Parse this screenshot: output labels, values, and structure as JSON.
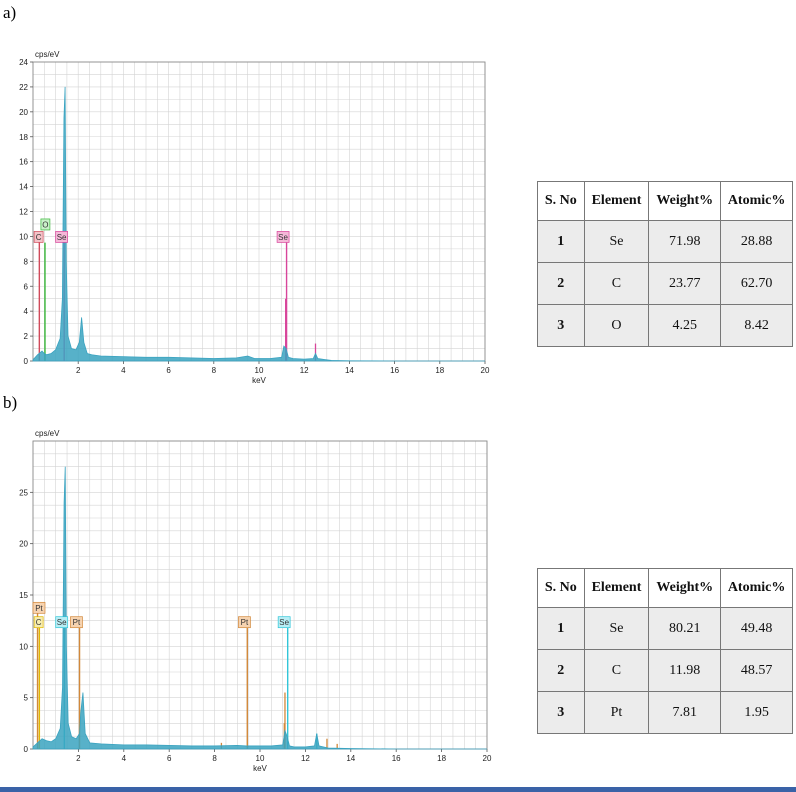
{
  "panels": [
    {
      "label": "a)",
      "chart_data": {
        "type": "line",
        "ylabel": "cps/eV",
        "xlabel": "keV",
        "xlim": [
          0,
          20
        ],
        "ylim": [
          0,
          24
        ],
        "x_ticks": [
          2,
          4,
          6,
          8,
          10,
          12,
          14,
          16,
          18,
          20
        ],
        "y_ticks": [
          0,
          2,
          4,
          6,
          8,
          10,
          12,
          14,
          16,
          18,
          20,
          22,
          24
        ],
        "grid": true,
        "spectrum": {
          "color": "#3aa3c0",
          "x": [
            0.0,
            0.2,
            0.4,
            0.5,
            0.6,
            0.8,
            1.0,
            1.2,
            1.3,
            1.37,
            1.42,
            1.47,
            1.55,
            1.7,
            1.9,
            2.05,
            2.15,
            2.25,
            2.4,
            2.6,
            3.0,
            4.0,
            5.0,
            6.0,
            7.0,
            8.0,
            9.0,
            9.5,
            9.8,
            10.0,
            10.5,
            11.0,
            11.1,
            11.2,
            11.3,
            11.5,
            12.0,
            12.4,
            12.5,
            12.6,
            12.9,
            13.2,
            14.0,
            16.0,
            18.0,
            20.0
          ],
          "y": [
            0.1,
            0.5,
            0.8,
            0.6,
            0.5,
            0.6,
            0.9,
            1.8,
            5.0,
            19.5,
            22.0,
            8.0,
            2.0,
            1.0,
            0.9,
            1.5,
            3.5,
            1.5,
            0.6,
            0.5,
            0.4,
            0.35,
            0.3,
            0.3,
            0.25,
            0.2,
            0.25,
            0.4,
            0.2,
            0.2,
            0.2,
            0.3,
            1.2,
            1.0,
            0.3,
            0.2,
            0.15,
            0.2,
            0.6,
            0.2,
            0.12,
            0.05,
            0.02,
            0.0,
            0.0,
            0.0
          ]
        },
        "element_lines": [
          {
            "element": "O",
            "x": 0.53,
            "height": 9.5,
            "color": "#3ab83a"
          },
          {
            "element": "C",
            "x": 0.28,
            "height": 10.0,
            "color": "#d04a5a"
          },
          {
            "element": "Se",
            "x": 1.38,
            "height": 10.0,
            "color": "#d8459a"
          },
          {
            "element": "Se",
            "x": 11.22,
            "height": 9.5,
            "color": "#d8459a"
          }
        ],
        "minor_lines": [
          {
            "x": 11.18,
            "height": 5.0,
            "color": "#d8459a"
          },
          {
            "x": 12.5,
            "height": 1.4,
            "color": "#d8459a"
          }
        ],
        "peak_labels": [
          {
            "text": "O",
            "x": 0.35,
            "y": 11.0,
            "color": "#3ab83a",
            "fill": "#c8f0c8"
          },
          {
            "text": "C",
            "x": 0.05,
            "y": 10.0,
            "color": "#d04a5a",
            "fill": "#f3c3c8"
          },
          {
            "text": "Se",
            "x": 1.0,
            "y": 10.0,
            "color": "#d8459a",
            "fill": "#f5b8d8"
          },
          {
            "text": "Se",
            "x": 10.8,
            "y": 10.0,
            "color": "#d8459a",
            "fill": "#f5b8d8"
          }
        ]
      },
      "table": {
        "headers": [
          "S. No",
          "Element",
          "Weight%",
          "Atomic%"
        ],
        "rows": [
          [
            "1",
            "Se",
            "71.98",
            "28.88"
          ],
          [
            "2",
            "C",
            "23.77",
            "62.70"
          ],
          [
            "3",
            "O",
            "4.25",
            "8.42"
          ]
        ]
      }
    },
    {
      "label": "b)",
      "chart_data": {
        "type": "line",
        "ylabel": "cps/eV",
        "xlabel": "keV",
        "xlim": [
          0,
          20
        ],
        "ylim": [
          0,
          30
        ],
        "x_ticks": [
          2,
          4,
          6,
          8,
          10,
          12,
          14,
          16,
          18,
          20
        ],
        "y_ticks": [
          0,
          5,
          10,
          15,
          20,
          25
        ],
        "grid": true,
        "spectrum": {
          "color": "#3aa3c0",
          "x": [
            0.0,
            0.2,
            0.4,
            0.6,
            0.8,
            1.0,
            1.2,
            1.3,
            1.37,
            1.42,
            1.47,
            1.55,
            1.7,
            1.9,
            2.05,
            2.1,
            2.2,
            2.3,
            2.5,
            3.0,
            4.0,
            5.0,
            6.0,
            7.0,
            8.0,
            9.0,
            9.4,
            9.8,
            10.0,
            10.5,
            11.0,
            11.1,
            11.2,
            11.3,
            11.5,
            12.0,
            12.4,
            12.5,
            12.6,
            13.0,
            14.0,
            16.0,
            18.0,
            20.0
          ],
          "y": [
            0.2,
            0.6,
            1.0,
            0.8,
            0.7,
            1.0,
            2.0,
            6.0,
            24.0,
            27.5,
            10.0,
            2.5,
            1.2,
            1.0,
            1.5,
            3.5,
            5.5,
            1.5,
            0.6,
            0.5,
            0.4,
            0.4,
            0.35,
            0.3,
            0.3,
            0.35,
            0.3,
            0.3,
            0.3,
            0.3,
            0.4,
            1.8,
            1.2,
            0.3,
            0.2,
            0.2,
            0.3,
            1.5,
            0.3,
            0.1,
            0.05,
            0.0,
            0.0,
            0.0
          ]
        },
        "element_lines": [
          {
            "element": "C",
            "x": 0.28,
            "height": 12.5,
            "color": "#e0b800"
          },
          {
            "element": "Pt",
            "x": 0.2,
            "height": 13.5,
            "color": "#d2883a"
          },
          {
            "element": "Se",
            "x": 1.38,
            "height": 12.5,
            "color": "#31c6d8"
          },
          {
            "element": "Pt",
            "x": 2.05,
            "height": 12.5,
            "color": "#d2883a"
          },
          {
            "element": "Pt",
            "x": 9.44,
            "height": 12.5,
            "color": "#d2883a"
          },
          {
            "element": "Se",
            "x": 11.22,
            "height": 12.5,
            "color": "#31c6d8"
          }
        ],
        "minor_lines": [
          {
            "x": 11.1,
            "height": 5.5,
            "color": "#d2883a"
          },
          {
            "x": 11.07,
            "height": 2.5,
            "color": "#d2883a"
          },
          {
            "x": 12.5,
            "height": 1.5,
            "color": "#31c6d8"
          },
          {
            "x": 12.95,
            "height": 1.0,
            "color": "#d2883a"
          },
          {
            "x": 13.4,
            "height": 0.5,
            "color": "#d2883a"
          },
          {
            "x": 8.3,
            "height": 0.6,
            "color": "#d2883a"
          }
        ],
        "peak_labels": [
          {
            "text": "Pt",
            "x": 0.0,
            "y": 13.8,
            "color": "#d2883a",
            "fill": "#f6d3b0"
          },
          {
            "text": "C",
            "x": 0.05,
            "y": 12.4,
            "color": "#e0b800",
            "fill": "#f6ecb0"
          },
          {
            "text": "Se",
            "x": 1.0,
            "y": 12.4,
            "color": "#31c6d8",
            "fill": "#b8eef5"
          },
          {
            "text": "Pt",
            "x": 1.65,
            "y": 12.4,
            "color": "#d2883a",
            "fill": "#f6d3b0"
          },
          {
            "text": "Pt",
            "x": 9.05,
            "y": 12.4,
            "color": "#d2883a",
            "fill": "#f6d3b0"
          },
          {
            "text": "Se",
            "x": 10.8,
            "y": 12.4,
            "color": "#31c6d8",
            "fill": "#b8eef5"
          }
        ]
      },
      "table": {
        "headers": [
          "S. No",
          "Element",
          "Weight%",
          "Atomic%"
        ],
        "rows": [
          [
            "1",
            "Se",
            "80.21",
            "49.48"
          ],
          [
            "2",
            "C",
            "11.98",
            "48.57"
          ],
          [
            "3",
            "Pt",
            "7.81",
            "1.95"
          ]
        ]
      }
    }
  ]
}
